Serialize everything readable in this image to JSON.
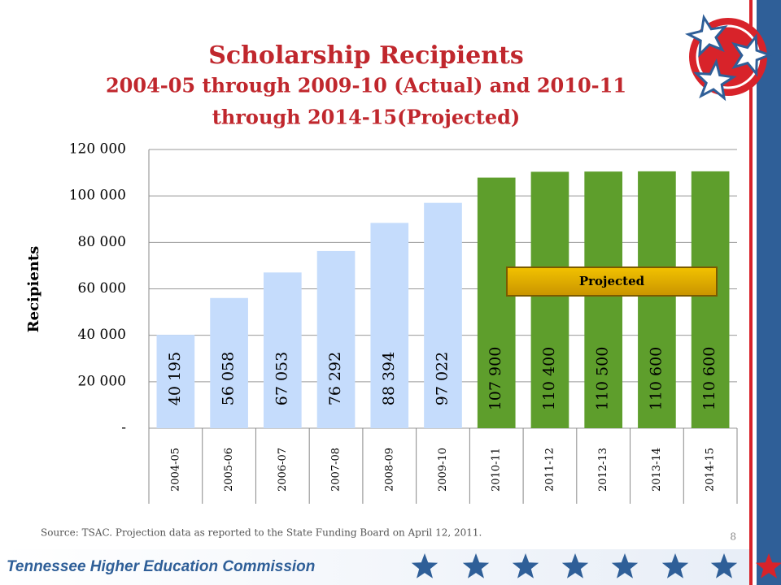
{
  "chart_data": {
    "type": "bar",
    "title": "Scholarship Recipients",
    "subtitle": [
      "2004-05 through 2009-10 (Actual) and 2010-11",
      "through 2014-15(Projected)"
    ],
    "y_label": "Recipients",
    "categories": [
      "2004-05",
      "2005-06",
      "2006-07",
      "2007-08",
      "2008-09",
      "2009-10",
      "2010-11",
      "2011-12",
      "2012-13",
      "2013-14",
      "2014-15"
    ],
    "values": [
      40195,
      56058,
      67053,
      76292,
      88394,
      97022,
      107900,
      110400,
      110500,
      110600,
      110600
    ],
    "value_labels": [
      "40 195",
      "56 058",
      "67 053",
      "76 292",
      "88 394",
      "97 022",
      "107 900",
      "110 400",
      "110 500",
      "110 600",
      "110 600"
    ],
    "colors": [
      "#c5dcfc",
      "#c5dcfc",
      "#c5dcfc",
      "#c5dcfc",
      "#c5dcfc",
      "#c5dcfc",
      "#5e9e2c",
      "#5e9e2c",
      "#5e9e2c",
      "#5e9e2c",
      "#5e9e2c"
    ],
    "ylim": [
      0,
      120000
    ],
    "yticks": [
      {
        "value": 0,
        "label": "-"
      },
      {
        "value": 20000,
        "label": "20 000"
      },
      {
        "value": 40000,
        "label": "40 000"
      },
      {
        "value": 60000,
        "label": "60 000"
      },
      {
        "value": 80000,
        "label": "80 000"
      },
      {
        "value": 100000,
        "label": "100 000"
      },
      {
        "value": 120000,
        "label": "120 000"
      }
    ],
    "grid": true,
    "annotation": "Projected",
    "source": "Source: TSAC. Projection data as reported to the State Funding Board on April 12, 2011."
  },
  "page_number": "8",
  "footer": "Tennessee Higher Education Commission"
}
